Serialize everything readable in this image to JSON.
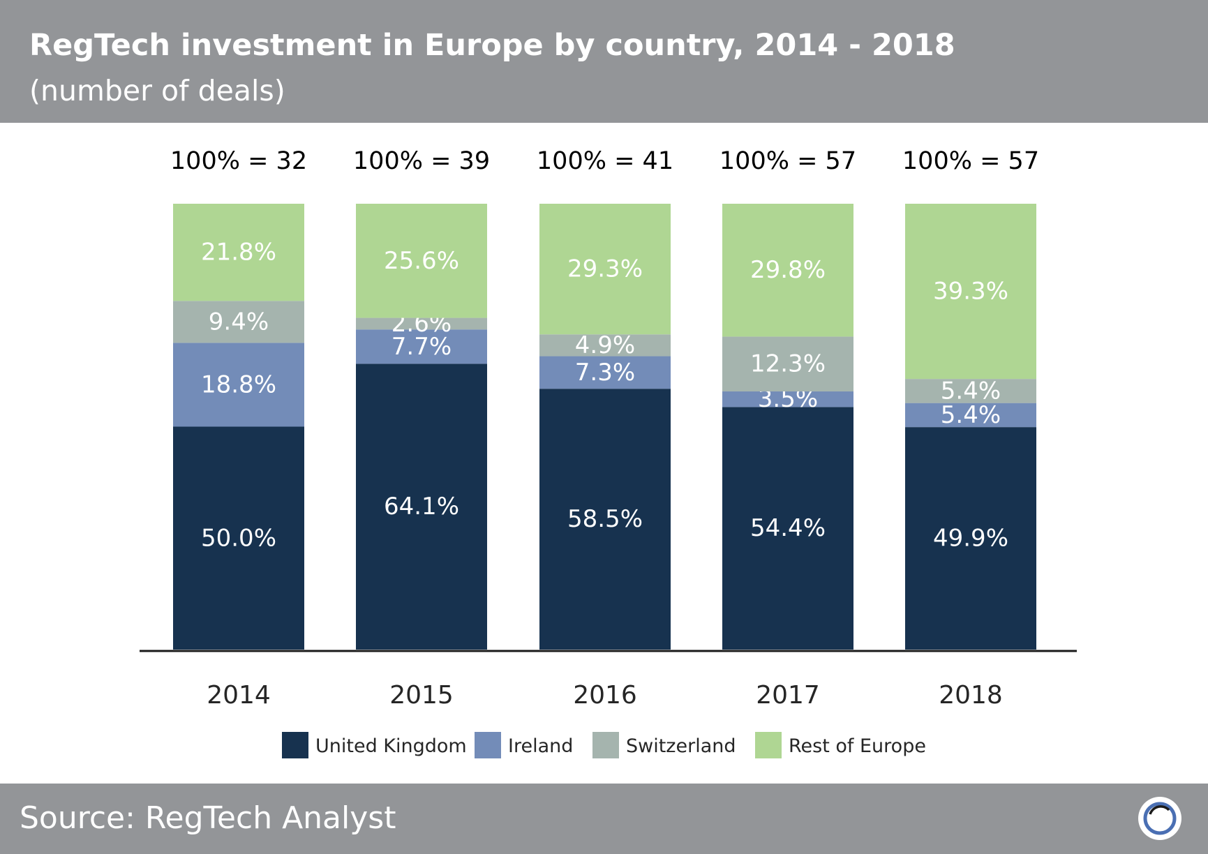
{
  "header": {
    "title": "RegTech investment in Europe by country, 2014 - 2018",
    "subtitle": "(number of deals)"
  },
  "footer": {
    "source": "Source: RegTech Analyst",
    "logo_icon": "circle-logo-icon"
  },
  "chart_data": {
    "type": "bar",
    "stacked": true,
    "title": "RegTech investment in Europe by country, 2014 - 2018",
    "subtitle": "(number of deals)",
    "categories": [
      "2014",
      "2015",
      "2016",
      "2017",
      "2018"
    ],
    "totals": [
      "100% = 32",
      "100% = 39",
      "100% = 41",
      "100% = 57",
      "100% = 57"
    ],
    "series": [
      {
        "name": "United Kingdom",
        "color": "#17324f",
        "values": [
          50.0,
          64.1,
          58.5,
          54.4,
          49.9
        ],
        "labels": [
          "50.0%",
          "64.1%",
          "58.5%",
          "54.4%",
          "49.9%"
        ]
      },
      {
        "name": "Ireland",
        "color": "#738cb8",
        "values": [
          18.8,
          7.7,
          7.3,
          3.5,
          5.4
        ],
        "labels": [
          "18.8%",
          "7.7%",
          "7.3%",
          "3.5%",
          "5.4%"
        ]
      },
      {
        "name": "Switzerland",
        "color": "#a5b4ae",
        "values": [
          9.4,
          2.6,
          4.9,
          12.3,
          5.4
        ],
        "labels": [
          "9.4%",
          "2.6%",
          "4.9%",
          "12.3%",
          "5.4%"
        ]
      },
      {
        "name": "Rest of Europe",
        "color": "#afd693",
        "values": [
          21.8,
          25.6,
          29.3,
          29.8,
          39.3
        ],
        "labels": [
          "21.8%",
          "25.6%",
          "29.3%",
          "29.8%",
          "39.3%"
        ]
      }
    ],
    "ylim": [
      0,
      100
    ],
    "xlabel": "",
    "ylabel": "",
    "grid": false,
    "legend": "bottom"
  }
}
